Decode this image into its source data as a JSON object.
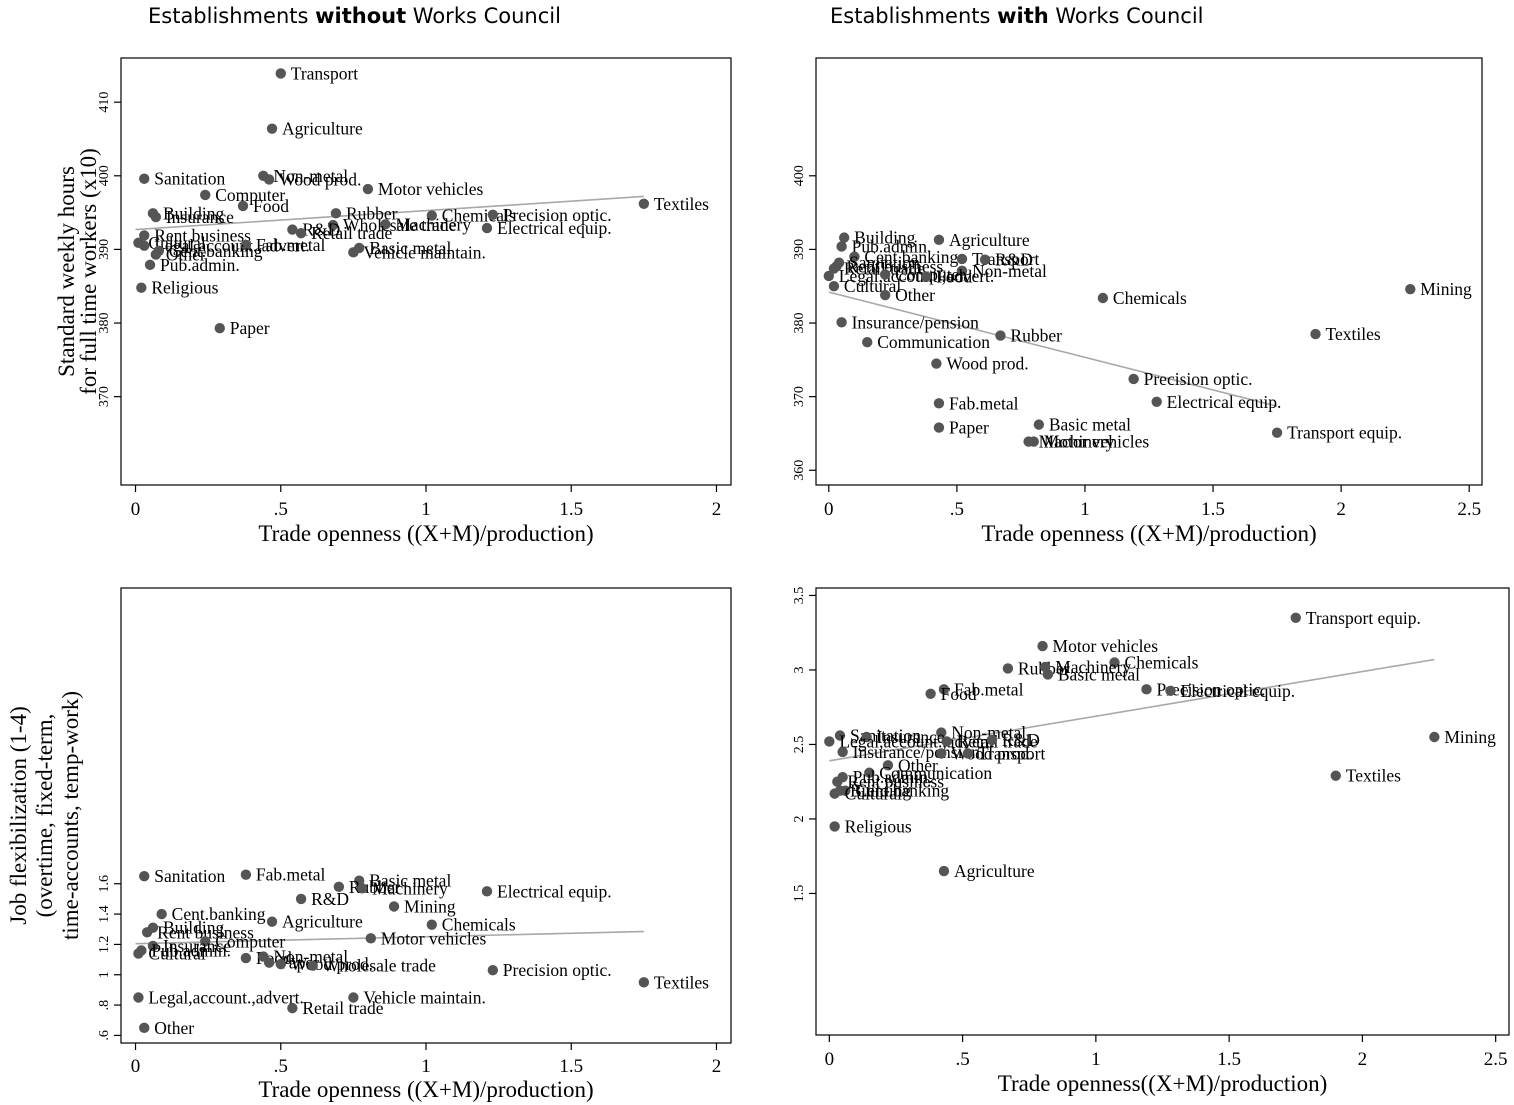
{
  "titles": {
    "left": {
      "pre": "Establishments ",
      "bold": "without",
      "post": " Works Council"
    },
    "right": {
      "pre": "Establishments ",
      "bold": "with",
      "post": " Works Council"
    }
  },
  "chart_data": [
    {
      "id": "hours_without",
      "type": "scatter",
      "title": "",
      "xlabel": "Trade openness ((X+M)/production)",
      "ylabel": [
        "Standard weekly hours",
        "for full time workers (x10)"
      ],
      "xlim": [
        -0.05,
        2.05
      ],
      "ylim": [
        358,
        416
      ],
      "xticks": [
        0,
        0.5,
        1,
        1.5,
        2
      ],
      "xtick_labels": [
        "0",
        ".5",
        "1",
        "1.5",
        "2"
      ],
      "yticks": [
        370,
        380,
        390,
        400,
        410
      ],
      "ytick_labels": [
        "370",
        "380",
        "390",
        "400",
        "410"
      ],
      "fit_line": {
        "x": [
          0.0,
          1.75
        ],
        "y": [
          392.7,
          397.2
        ]
      },
      "points": [
        {
          "label": "Transport",
          "x": 0.5,
          "y": 413.9
        },
        {
          "label": "Agriculture",
          "x": 0.47,
          "y": 406.4
        },
        {
          "label": "Sanitation",
          "x": 0.03,
          "y": 399.6
        },
        {
          "label": "Non-metal",
          "x": 0.44,
          "y": 400.0
        },
        {
          "label": "Wood prod.",
          "x": 0.46,
          "y": 399.5
        },
        {
          "label": "Motor vehicles",
          "x": 0.8,
          "y": 398.2
        },
        {
          "label": "Computer",
          "x": 0.24,
          "y": 397.4
        },
        {
          "label": "Food",
          "x": 0.37,
          "y": 395.9
        },
        {
          "label": "Textiles",
          "x": 1.75,
          "y": 396.2
        },
        {
          "label": "Building",
          "x": 0.06,
          "y": 394.9
        },
        {
          "label": "Insurance",
          "x": 0.07,
          "y": 394.4
        },
        {
          "label": "Rubber",
          "x": 0.69,
          "y": 394.9
        },
        {
          "label": "Chemicals",
          "x": 1.02,
          "y": 394.6
        },
        {
          "label": "Precision optic.",
          "x": 1.23,
          "y": 394.7
        },
        {
          "label": "Wholesale trade",
          "x": 0.68,
          "y": 393.3
        },
        {
          "label": "Machinery",
          "x": 0.86,
          "y": 393.4
        },
        {
          "label": "Electrical equip.",
          "x": 1.21,
          "y": 392.9
        },
        {
          "label": "R&D",
          "x": 0.54,
          "y": 392.7
        },
        {
          "label": "Retail trade",
          "x": 0.57,
          "y": 392.2
        },
        {
          "label": "Rent business",
          "x": 0.03,
          "y": 391.9
        },
        {
          "label": "Cultural",
          "x": 0.01,
          "y": 390.9
        },
        {
          "label": "Legal,account.,advert.",
          "x": 0.03,
          "y": 390.5
        },
        {
          "label": "Fab.metal",
          "x": 0.38,
          "y": 390.6
        },
        {
          "label": "Cent.banking",
          "x": 0.08,
          "y": 389.8
        },
        {
          "label": "Other",
          "x": 0.07,
          "y": 389.3
        },
        {
          "label": "Basic metal",
          "x": 0.77,
          "y": 390.2
        },
        {
          "label": "Vehicle maintain.",
          "x": 0.75,
          "y": 389.6
        },
        {
          "label": "Pub.admin.",
          "x": 0.05,
          "y": 387.9
        },
        {
          "label": "Religious",
          "x": 0.02,
          "y": 384.8
        },
        {
          "label": "Paper",
          "x": 0.29,
          "y": 379.3
        }
      ]
    },
    {
      "id": "hours_with",
      "type": "scatter",
      "title": "",
      "xlabel": "Trade openness ((X+M)/production)",
      "ylabel": [],
      "xlim": [
        -0.05,
        2.55
      ],
      "ylim": [
        358,
        416
      ],
      "xticks": [
        0,
        0.5,
        1,
        1.5,
        2,
        2.5
      ],
      "xtick_labels": [
        "0",
        ".5",
        "1",
        "1.5",
        "2",
        "2.5"
      ],
      "yticks": [
        360,
        370,
        380,
        390,
        400
      ],
      "ytick_labels": [
        "360",
        "370",
        "380",
        "390",
        "400"
      ],
      "fit_line": {
        "x": [
          0.0,
          1.75
        ],
        "y": [
          384.2,
          368.7
        ]
      },
      "points": [
        {
          "label": "Building",
          "x": 0.06,
          "y": 391.6
        },
        {
          "label": "Agriculture",
          "x": 0.43,
          "y": 391.3
        },
        {
          "label": "Pub.admin.",
          "x": 0.05,
          "y": 390.4
        },
        {
          "label": "Cent.banking",
          "x": 0.1,
          "y": 389.0
        },
        {
          "label": "Transport",
          "x": 0.52,
          "y": 388.7
        },
        {
          "label": "R&D",
          "x": 0.61,
          "y": 388.6
        },
        {
          "label": "Sanitation",
          "x": 0.04,
          "y": 388.2
        },
        {
          "label": "Rent business",
          "x": 0.03,
          "y": 387.7
        },
        {
          "label": "Retail trade",
          "x": 0.02,
          "y": 387.4
        },
        {
          "label": "Non-metal",
          "x": 0.52,
          "y": 387.1
        },
        {
          "label": "Legal,account.,advert.",
          "x": 0.0,
          "y": 386.4
        },
        {
          "label": "Computer",
          "x": 0.22,
          "y": 386.6
        },
        {
          "label": "Food",
          "x": 0.38,
          "y": 386.3
        },
        {
          "label": "Cultural",
          "x": 0.02,
          "y": 385.0
        },
        {
          "label": "Other",
          "x": 0.22,
          "y": 383.8
        },
        {
          "label": "Chemicals",
          "x": 1.07,
          "y": 383.4
        },
        {
          "label": "Mining",
          "x": 2.27,
          "y": 384.6
        },
        {
          "label": "Insurance/pension",
          "x": 0.05,
          "y": 380.1
        },
        {
          "label": "Rubber",
          "x": 0.67,
          "y": 378.3
        },
        {
          "label": "Textiles",
          "x": 1.9,
          "y": 378.5
        },
        {
          "label": "Communication",
          "x": 0.15,
          "y": 377.4
        },
        {
          "label": "Wood prod.",
          "x": 0.42,
          "y": 374.5
        },
        {
          "label": "Precision optic.",
          "x": 1.19,
          "y": 372.4
        },
        {
          "label": "Electrical equip.",
          "x": 1.28,
          "y": 369.3
        },
        {
          "label": "Fab.metal",
          "x": 0.43,
          "y": 369.1
        },
        {
          "label": "Basic metal",
          "x": 0.82,
          "y": 366.2
        },
        {
          "label": "Paper",
          "x": 0.43,
          "y": 365.8
        },
        {
          "label": "Transport equip.",
          "x": 1.75,
          "y": 365.1
        },
        {
          "label": "Motor vehicles",
          "x": 0.8,
          "y": 363.9
        },
        {
          "label": "Machinery",
          "x": 0.78,
          "y": 363.9
        }
      ]
    },
    {
      "id": "flex_without",
      "type": "scatter",
      "title": "",
      "xlabel": "Trade openness ((X+M)/production)",
      "ylabel": [
        "Job flexibilization (1-4)",
        "(overtime, fixed-term,",
        "time-accounts, temp-work)"
      ],
      "xlim": [
        -0.05,
        2.05
      ],
      "ylim": [
        0.55,
        3.55
      ],
      "xticks": [
        0,
        0.5,
        1,
        1.5,
        2
      ],
      "xtick_labels": [
        "0",
        ".5",
        "1",
        "1.5",
        "2"
      ],
      "yticks": [
        0.6,
        0.8,
        1.0,
        1.2,
        1.4,
        1.6
      ],
      "ytick_labels": [
        ".6",
        ".8",
        "1",
        "1.2",
        "1.4",
        "1.6"
      ],
      "fit_line": {
        "x": [
          0.0,
          1.75
        ],
        "y": [
          1.205,
          1.285
        ]
      },
      "points": [
        {
          "label": "Sanitation",
          "x": 0.03,
          "y": 1.65
        },
        {
          "label": "Fab.metal",
          "x": 0.38,
          "y": 1.66
        },
        {
          "label": "Basic metal",
          "x": 0.77,
          "y": 1.62
        },
        {
          "label": "Rubber",
          "x": 0.7,
          "y": 1.58
        },
        {
          "label": "Machinery",
          "x": 0.78,
          "y": 1.57
        },
        {
          "label": "Electrical equip.",
          "x": 1.21,
          "y": 1.55
        },
        {
          "label": "R&D",
          "x": 0.57,
          "y": 1.5
        },
        {
          "label": "Mining",
          "x": 0.89,
          "y": 1.45
        },
        {
          "label": "Cent.banking",
          "x": 0.09,
          "y": 1.4
        },
        {
          "label": "Agriculture",
          "x": 0.47,
          "y": 1.35
        },
        {
          "label": "Chemicals",
          "x": 1.02,
          "y": 1.33
        },
        {
          "label": "Building",
          "x": 0.06,
          "y": 1.31
        },
        {
          "label": "Rent business",
          "x": 0.04,
          "y": 1.28
        },
        {
          "label": "Motor vehicles",
          "x": 0.81,
          "y": 1.24
        },
        {
          "label": "Computer",
          "x": 0.24,
          "y": 1.22
        },
        {
          "label": "Insurance",
          "x": 0.06,
          "y": 1.19
        },
        {
          "label": "Pub.admin.",
          "x": 0.02,
          "y": 1.16
        },
        {
          "label": "Cultural",
          "x": 0.01,
          "y": 1.14
        },
        {
          "label": "Food",
          "x": 0.38,
          "y": 1.11
        },
        {
          "label": "Non-metal",
          "x": 0.44,
          "y": 1.12
        },
        {
          "label": "Paper",
          "x": 0.46,
          "y": 1.08
        },
        {
          "label": "Wood prod.",
          "x": 0.5,
          "y": 1.07
        },
        {
          "label": "Wholesale trade",
          "x": 0.61,
          "y": 1.06
        },
        {
          "label": "Precision optic.",
          "x": 1.23,
          "y": 1.03
        },
        {
          "label": "Textiles",
          "x": 1.75,
          "y": 0.95
        },
        {
          "label": "Legal,account.,advert.",
          "x": 0.01,
          "y": 0.85
        },
        {
          "label": "Vehicle maintain.",
          "x": 0.75,
          "y": 0.85
        },
        {
          "label": "Retail trade",
          "x": 0.54,
          "y": 0.78
        },
        {
          "label": "Other",
          "x": 0.03,
          "y": 0.65
        }
      ]
    },
    {
      "id": "flex_with",
      "type": "scatter",
      "title": "",
      "xlabel": "Trade openness((X+M)/production)",
      "ylabel": [],
      "xlim": [
        -0.05,
        2.55
      ],
      "ylim": [
        0.55,
        3.55
      ],
      "xticks": [
        0,
        0.5,
        1,
        1.5,
        2,
        2.5
      ],
      "xtick_labels": [
        "0",
        ".5",
        "1",
        "1.5",
        "2",
        "2.5"
      ],
      "yticks": [
        1.5,
        2.0,
        2.5,
        3.0,
        3.5
      ],
      "ytick_labels": [
        "1.5",
        "2",
        "2.5",
        "3",
        "3.5"
      ],
      "fit_line": {
        "x": [
          0.0,
          2.27
        ],
        "y": [
          2.39,
          3.07
        ]
      },
      "points": [
        {
          "label": "Transport equip.",
          "x": 1.75,
          "y": 3.35
        },
        {
          "label": "Motor vehicles",
          "x": 0.8,
          "y": 3.16
        },
        {
          "label": "Chemicals",
          "x": 1.07,
          "y": 3.05
        },
        {
          "label": "Rubber",
          "x": 0.67,
          "y": 3.01
        },
        {
          "label": "Machinery",
          "x": 0.81,
          "y": 3.02
        },
        {
          "label": "Basic metal",
          "x": 0.82,
          "y": 2.97
        },
        {
          "label": "Fab.metal",
          "x": 0.43,
          "y": 2.87
        },
        {
          "label": "Food",
          "x": 0.38,
          "y": 2.84
        },
        {
          "label": "Precision optic.",
          "x": 1.19,
          "y": 2.87
        },
        {
          "label": "Electrical equip.",
          "x": 1.28,
          "y": 2.86
        },
        {
          "label": "Mining",
          "x": 2.27,
          "y": 2.55
        },
        {
          "label": "Non-metal",
          "x": 0.42,
          "y": 2.58
        },
        {
          "label": "Sanitation",
          "x": 0.04,
          "y": 2.56
        },
        {
          "label": "Insurance",
          "x": 0.14,
          "y": 2.55
        },
        {
          "label": "Legal,account.,advert.",
          "x": 0.0,
          "y": 2.52
        },
        {
          "label": "Retail trade",
          "x": 0.44,
          "y": 2.52
        },
        {
          "label": "R&D",
          "x": 0.61,
          "y": 2.53
        },
        {
          "label": "Insurance/pension",
          "x": 0.05,
          "y": 2.45
        },
        {
          "label": "Wood prod.",
          "x": 0.42,
          "y": 2.44
        },
        {
          "label": "Transport",
          "x": 0.52,
          "y": 2.44
        },
        {
          "label": "Textiles",
          "x": 1.9,
          "y": 2.29
        },
        {
          "label": "Other",
          "x": 0.22,
          "y": 2.36
        },
        {
          "label": "Communication",
          "x": 0.15,
          "y": 2.31
        },
        {
          "label": "Pub.admin.",
          "x": 0.05,
          "y": 2.28
        },
        {
          "label": "Rent business",
          "x": 0.03,
          "y": 2.25
        },
        {
          "label": "Cent.banking",
          "x": 0.06,
          "y": 2.19
        },
        {
          "label": "Building",
          "x": 0.04,
          "y": 2.19
        },
        {
          "label": "Cultural",
          "x": 0.02,
          "y": 2.17
        },
        {
          "label": "Religious",
          "x": 0.02,
          "y": 1.95
        },
        {
          "label": "Agriculture",
          "x": 0.43,
          "y": 1.65
        }
      ]
    }
  ]
}
